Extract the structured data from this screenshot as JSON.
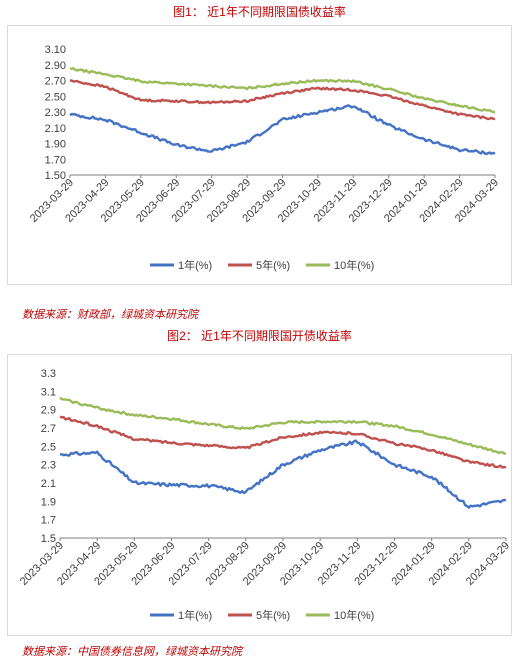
{
  "colors": {
    "y1": "#4472c4",
    "y5": "#c0504d",
    "y10": "#9bbb59",
    "title": "#c00000",
    "axis": "#7f7f7f",
    "grid": "#d9d9d9"
  },
  "figure1": {
    "title": "图1： 近1年不同期限国债收益率",
    "source": "数据来源：财政部，绿城资本研究院"
  },
  "figure2": {
    "title": "图2： 近1年不同期限国开债收益率",
    "source": "数据来源：中国债券信息网，绿城资本研究院"
  },
  "chart_data": [
    {
      "type": "line",
      "title": "图1： 近1年不同期限国债收益率",
      "x": [
        "2023-03-29",
        "2023-04-29",
        "2023-05-29",
        "2023-06-29",
        "2023-07-29",
        "2023-08-29",
        "2023-09-29",
        "2023-10-29",
        "2023-11-29",
        "2023-12-29",
        "2024-01-29",
        "2024-02-29",
        "2024-03-29"
      ],
      "ylim": [
        1.5,
        3.1
      ],
      "yticks": [
        "3.10",
        "2.90",
        "2.70",
        "2.50",
        "2.30",
        "2.10",
        "1.90",
        "1.70",
        "1.50"
      ],
      "series": [
        {
          "name": "1年(%)",
          "values": [
            2.27,
            2.2,
            2.04,
            1.88,
            1.8,
            1.92,
            2.2,
            2.3,
            2.38,
            2.13,
            1.95,
            1.82,
            1.77
          ]
        },
        {
          "name": "5年(%)",
          "values": [
            2.7,
            2.62,
            2.45,
            2.44,
            2.42,
            2.44,
            2.54,
            2.6,
            2.58,
            2.5,
            2.38,
            2.27,
            2.21
          ]
        },
        {
          "name": "10年(%)",
          "values": [
            2.85,
            2.78,
            2.69,
            2.66,
            2.63,
            2.6,
            2.66,
            2.7,
            2.69,
            2.59,
            2.47,
            2.38,
            2.3
          ]
        }
      ],
      "legend": "bottom"
    },
    {
      "type": "line",
      "title": "图2： 近1年不同期限国开债收益率",
      "x": [
        "2023-03-29",
        "2023-04-29",
        "2023-05-29",
        "2023-06-29",
        "2023-07-29",
        "2023-08-29",
        "2023-09-29",
        "2023-10-29",
        "2023-11-29",
        "2023-12-29",
        "2024-01-29",
        "2024-02-29",
        "2024-03-29"
      ],
      "ylim": [
        1.5,
        3.3
      ],
      "yticks": [
        "3.3",
        "3.1",
        "2.9",
        "2.7",
        "2.5",
        "2.3",
        "2.1",
        "1.9",
        "1.7",
        "1.5"
      ],
      "series": [
        {
          "name": "1年(%)",
          "values": [
            2.41,
            2.43,
            2.1,
            2.08,
            2.07,
            2.0,
            2.3,
            2.46,
            2.55,
            2.3,
            2.17,
            1.84,
            1.91
          ]
        },
        {
          "name": "5年(%)",
          "values": [
            2.82,
            2.72,
            2.58,
            2.54,
            2.51,
            2.48,
            2.6,
            2.65,
            2.64,
            2.53,
            2.46,
            2.33,
            2.27
          ]
        },
        {
          "name": "10年(%)",
          "values": [
            3.02,
            2.92,
            2.84,
            2.8,
            2.74,
            2.69,
            2.76,
            2.77,
            2.77,
            2.72,
            2.63,
            2.52,
            2.42
          ]
        }
      ],
      "legend": "bottom"
    }
  ]
}
